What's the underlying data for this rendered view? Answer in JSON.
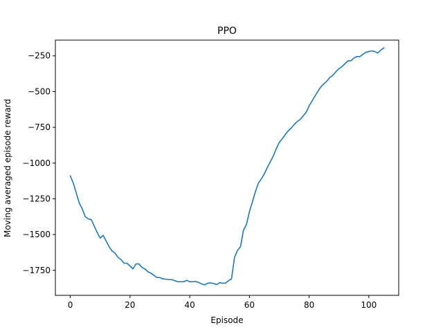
{
  "chart_data": {
    "type": "line",
    "title": "PPO",
    "xlabel": "Episode",
    "ylabel": "Moving averaged episode reward",
    "xlim": [
      -5,
      110
    ],
    "ylim": [
      -1925,
      -140
    ],
    "x_ticks": [
      0,
      20,
      40,
      60,
      80,
      100
    ],
    "y_ticks": [
      -1750,
      -1500,
      -1250,
      -1000,
      -750,
      -500,
      -250
    ],
    "x_tick_labels": [
      "0",
      "20",
      "40",
      "60",
      "80",
      "100"
    ],
    "y_tick_labels": [
      "−1750",
      "−1500",
      "−1250",
      "−1000",
      "−750",
      "−500",
      "−250"
    ],
    "grid": false,
    "legend": false,
    "series": [
      {
        "color": "#1f77b4",
        "x": [
          0,
          1,
          2,
          3,
          4,
          5,
          6,
          7,
          8,
          9,
          10,
          11,
          12,
          13,
          14,
          15,
          16,
          17,
          18,
          19,
          20,
          21,
          22,
          23,
          24,
          25,
          26,
          27,
          28,
          29,
          30,
          31,
          32,
          33,
          34,
          35,
          36,
          37,
          38,
          39,
          40,
          41,
          42,
          43,
          44,
          45,
          46,
          47,
          48,
          49,
          50,
          51,
          52,
          53,
          54,
          55,
          56,
          57,
          58,
          59,
          60,
          61,
          62,
          63,
          64,
          65,
          66,
          67,
          68,
          69,
          70,
          71,
          72,
          73,
          74,
          75,
          76,
          77,
          78,
          79,
          80,
          81,
          82,
          83,
          84,
          85,
          86,
          87,
          88,
          89,
          90,
          91,
          92,
          93,
          94,
          95,
          96,
          97,
          98,
          99,
          100,
          101,
          102,
          103,
          104,
          105
        ],
        "y": [
          -1090,
          -1140,
          -1210,
          -1280,
          -1320,
          -1375,
          -1390,
          -1395,
          -1440,
          -1485,
          -1525,
          -1505,
          -1545,
          -1585,
          -1615,
          -1630,
          -1660,
          -1675,
          -1700,
          -1700,
          -1720,
          -1740,
          -1705,
          -1705,
          -1730,
          -1740,
          -1760,
          -1770,
          -1785,
          -1800,
          -1800,
          -1810,
          -1812,
          -1815,
          -1815,
          -1822,
          -1830,
          -1830,
          -1830,
          -1820,
          -1830,
          -1830,
          -1828,
          -1835,
          -1845,
          -1852,
          -1840,
          -1838,
          -1842,
          -1850,
          -1837,
          -1840,
          -1840,
          -1822,
          -1810,
          -1660,
          -1610,
          -1585,
          -1470,
          -1430,
          -1340,
          -1270,
          -1200,
          -1140,
          -1110,
          -1075,
          -1030,
          -990,
          -950,
          -900,
          -855,
          -830,
          -800,
          -775,
          -755,
          -730,
          -710,
          -695,
          -670,
          -645,
          -600,
          -565,
          -530,
          -495,
          -465,
          -445,
          -425,
          -400,
          -385,
          -360,
          -340,
          -325,
          -305,
          -285,
          -285,
          -265,
          -255,
          -255,
          -240,
          -225,
          -220,
          -215,
          -220,
          -230,
          -210,
          -195
        ]
      }
    ]
  }
}
